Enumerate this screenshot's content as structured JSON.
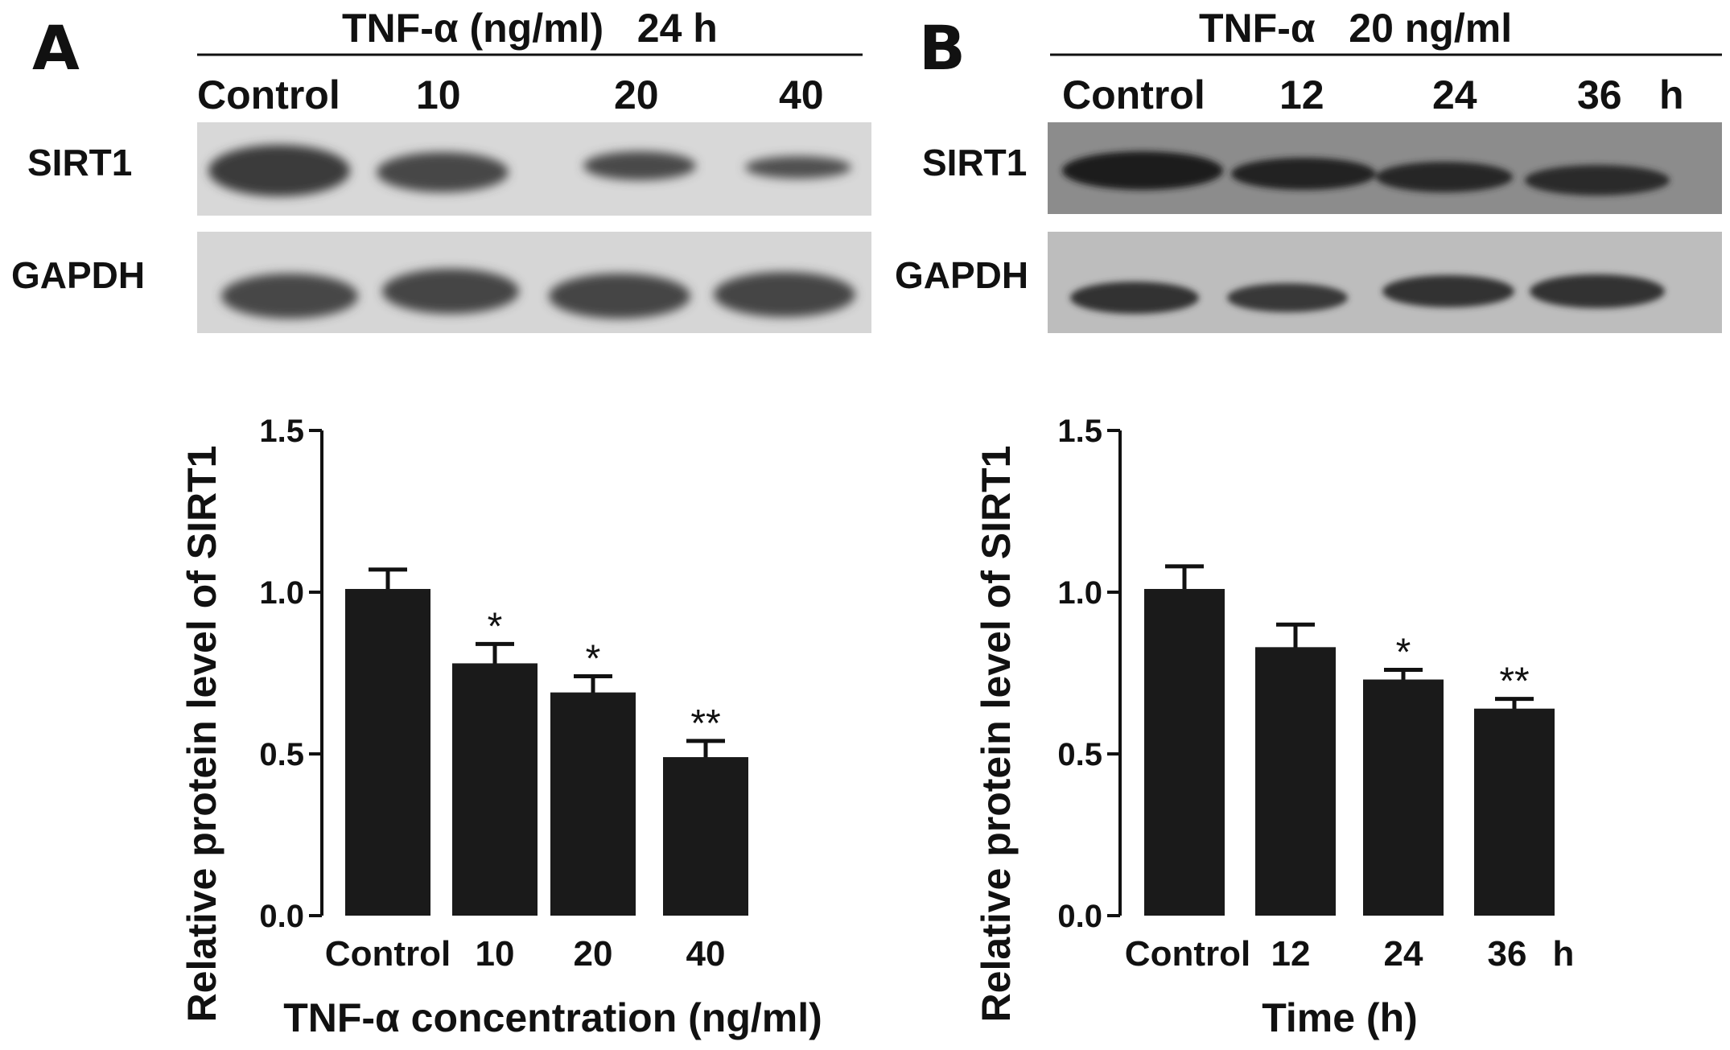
{
  "panels": [
    {
      "letter": "A",
      "blot": {
        "header": "TNF-α (ng/ml)   24 h",
        "lanes": [
          "Control",
          "10",
          "20",
          "40"
        ],
        "rows": [
          "SIRT1",
          "GAPDH"
        ]
      },
      "chart_data": {
        "type": "bar",
        "categories": [
          "Control",
          "10",
          "20",
          "40"
        ],
        "values": [
          1.01,
          0.78,
          0.69,
          0.49
        ],
        "errors": [
          0.06,
          0.06,
          0.05,
          0.05
        ],
        "significance": [
          "",
          "*",
          "*",
          "**"
        ],
        "xlabel": "TNF-α concentration (ng/ml)",
        "ylabel": "Relative protein level of SIRT1",
        "ylim": [
          0,
          1.5
        ],
        "yticks": [
          "0.0",
          "0.5",
          "1.0",
          "1.5"
        ],
        "bar_color": "#1a1a1a",
        "grid": false
      }
    },
    {
      "letter": "B",
      "blot": {
        "header": "TNF-α   20 ng/ml",
        "lanes": [
          "Control",
          "12",
          "24",
          "36",
          "h"
        ],
        "rows": [
          "SIRT1",
          "GAPDH"
        ]
      },
      "chart_data": {
        "type": "bar",
        "categories": [
          "Control",
          "12",
          "24",
          "36"
        ],
        "category_suffix": "h",
        "values": [
          1.01,
          0.83,
          0.73,
          0.64
        ],
        "errors": [
          0.07,
          0.07,
          0.03,
          0.03
        ],
        "significance": [
          "",
          "",
          "*",
          "**"
        ],
        "xlabel": "Time (h)",
        "ylabel": "Relative protein level of SIRT1",
        "ylim": [
          0,
          1.5
        ],
        "yticks": [
          "0.0",
          "0.5",
          "1.0",
          "1.5"
        ],
        "bar_color": "#1a1a1a",
        "grid": false
      }
    }
  ]
}
